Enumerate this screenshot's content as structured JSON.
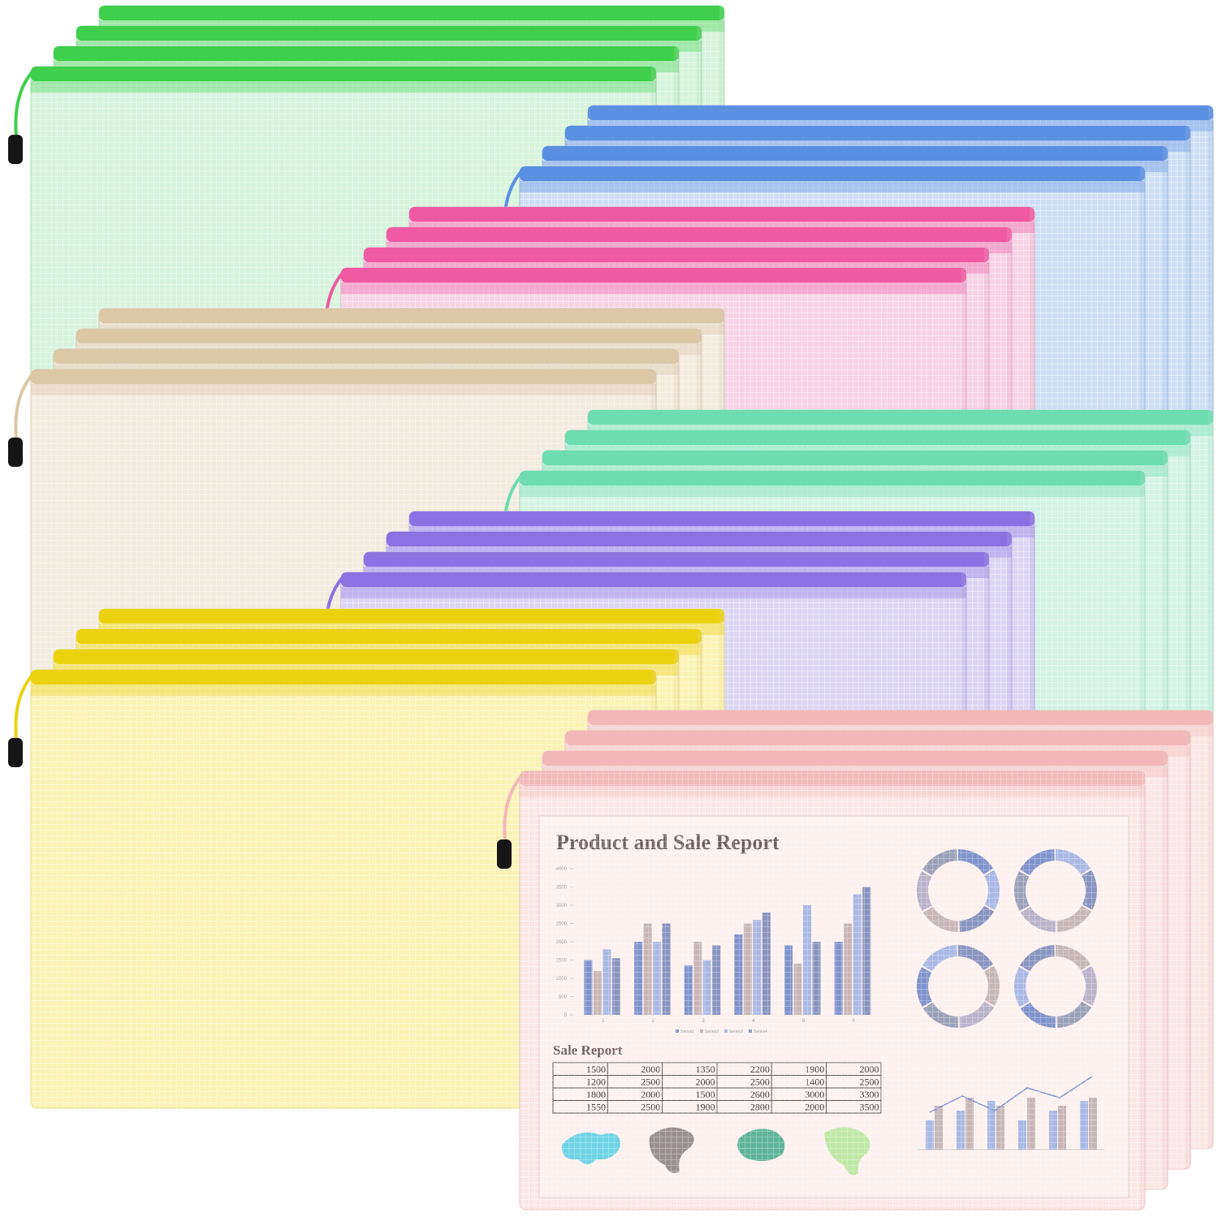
{
  "document": {
    "title": "Product and Sale Report",
    "chart": {
      "yticks": [
        0,
        500,
        1000,
        1500,
        2000,
        2500,
        3000,
        3500,
        4000
      ],
      "categories": [
        "1",
        "2",
        "3",
        "4",
        "5",
        "6"
      ],
      "series": [
        {
          "name": "Series1",
          "color": "#7f93cc"
        },
        {
          "name": "Series2",
          "color": "#c8b6b6"
        },
        {
          "name": "Series3",
          "color": "#a9b8e4"
        },
        {
          "name": "Series4",
          "color": "#8a94c0"
        }
      ]
    },
    "table_title": "Sale Report",
    "table": {
      "rows": [
        [
          1500,
          2000,
          1350,
          2200,
          1900,
          2000
        ],
        [
          1200,
          2500,
          2000,
          2500,
          1400,
          2500
        ],
        [
          1800,
          2000,
          1500,
          2600,
          3000,
          3300
        ],
        [
          1550,
          2500,
          1900,
          2800,
          2000,
          3500
        ]
      ]
    }
  }
}
